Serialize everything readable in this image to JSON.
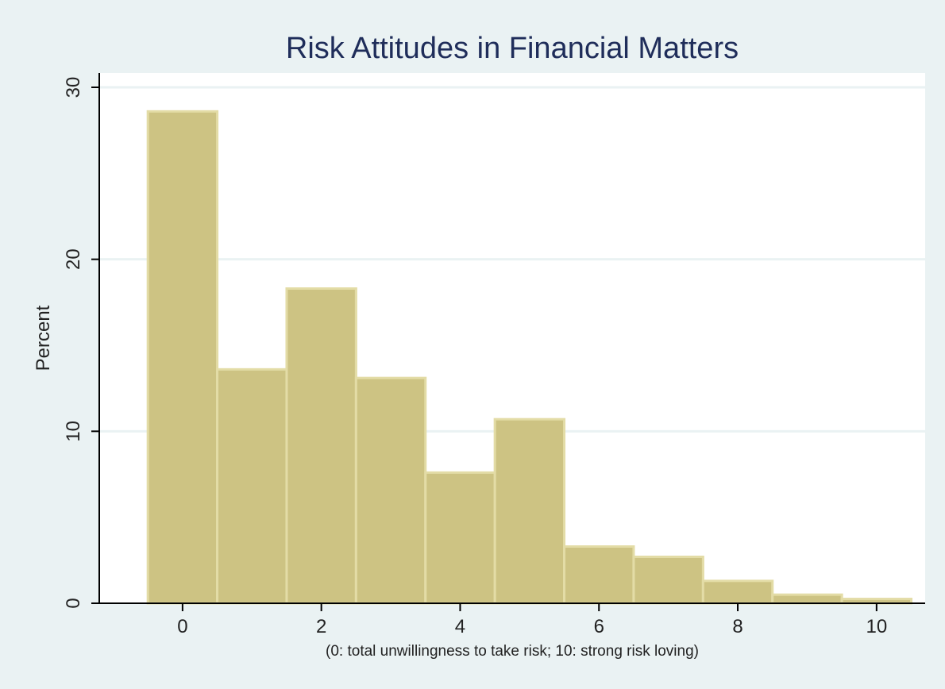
{
  "chart_data": {
    "type": "bar",
    "title": "Risk Attitudes in Financial Matters",
    "xlabel": "(0: total unwillingness to take risk; 10: strong risk loving)",
    "ylabel": "Percent",
    "categories": [
      0,
      1,
      2,
      3,
      4,
      5,
      6,
      7,
      8,
      9,
      10
    ],
    "values": [
      28.6,
      13.6,
      18.3,
      13.1,
      7.6,
      10.7,
      3.3,
      2.7,
      1.3,
      0.5,
      0.25
    ],
    "xlim": [
      -1.2,
      10.7
    ],
    "ylim": [
      0,
      30
    ],
    "xticks": [
      0,
      2,
      4,
      6,
      8,
      10
    ],
    "yticks": [
      0,
      10,
      20,
      30
    ],
    "grid": true,
    "colors": {
      "background": "#eaf2f3",
      "plot_area": "#ffffff",
      "bar_fill": "#cdc383",
      "bar_edge": "#e3dca6",
      "grid": "#eaf2f3",
      "title": "#1f2d5a"
    }
  }
}
